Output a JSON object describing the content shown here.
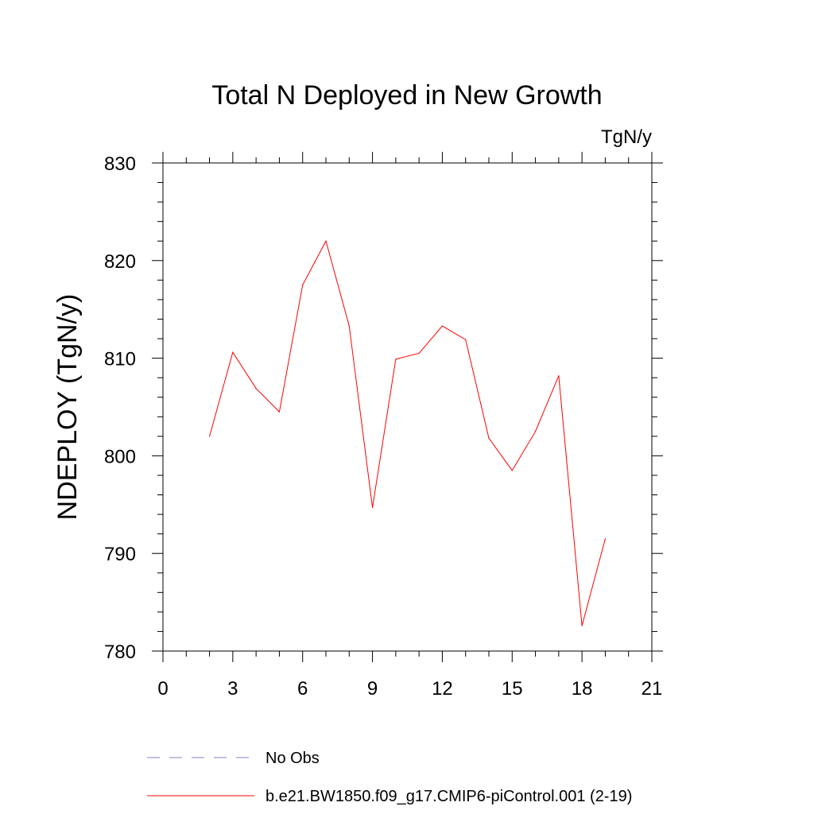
{
  "chart_data": {
    "type": "line",
    "title": "Total N Deployed in New Growth",
    "units": "TgN/y",
    "ylabel": "NDEPLOY  (TgN/y)",
    "xlabel": "",
    "xlim": [
      0,
      21
    ],
    "ylim": [
      780,
      830
    ],
    "xticks": [
      0,
      3,
      6,
      9,
      12,
      15,
      18,
      21
    ],
    "yticks": [
      780,
      790,
      800,
      810,
      820,
      830
    ],
    "grid": false,
    "legend_position": "bottom",
    "series": [
      {
        "name": "b.e21.BW1850.f09_g17.CMIP6-piControl.001 (2-19)",
        "color": "#ff0000",
        "style": "solid",
        "x": [
          2,
          3,
          4,
          5,
          6,
          7,
          8,
          9,
          10,
          11,
          12,
          13,
          14,
          15,
          16,
          17,
          18,
          19
        ],
        "y": [
          802.0,
          810.6,
          806.9,
          804.5,
          817.5,
          822.0,
          813.3,
          794.7,
          809.9,
          810.5,
          813.3,
          811.9,
          801.8,
          798.5,
          802.5,
          808.2,
          782.6,
          791.5
        ]
      }
    ],
    "legend": [
      {
        "label": "No Obs",
        "color": "#8080c8",
        "style": "dashed"
      },
      {
        "label": "b.e21.BW1850.f09_g17.CMIP6-piControl.001 (2-19)",
        "color": "#ff0000",
        "style": "solid"
      }
    ]
  }
}
